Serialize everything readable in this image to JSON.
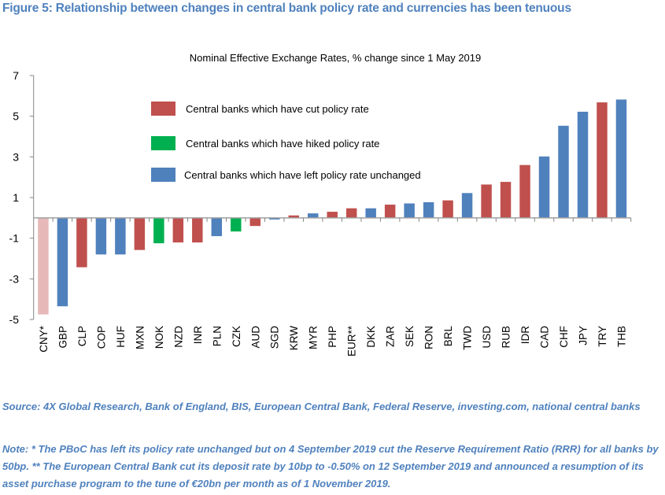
{
  "figure_title": "Figure 5: Relationship between changes in central bank policy rate and currencies has been tenuous",
  "source": "Source: 4X Global Research, Bank of England, BIS, European Central Bank, Federal Reserve, investing.com, national central banks",
  "note": "Note: * The PBoC has left its policy rate unchanged but on 4 September 2019 cut the Reserve Requirement Ratio (RRR) for all banks by 50bp. ** The European Central Bank cut its deposit rate by 10bp to -0.50% on 12 September 2019 and announced a resumption of its asset purchase program to the tune of €20bn per month as of 1 November 2019.",
  "colors": {
    "cut": "#c0504d",
    "hiked": "#00b050",
    "unchanged": "#4f81bd",
    "cny_special": "#e6b9b8",
    "title": "#4f81bd"
  },
  "chart_data": {
    "type": "bar",
    "title": "Nominal Effective Exchange Rates, % change since 1 May 2019",
    "xlabel": "",
    "ylabel": "",
    "ylim": [
      -5,
      7
    ],
    "yticks": [
      -5,
      -3,
      -1,
      1,
      3,
      5,
      7
    ],
    "grid": false,
    "legend_position": "top-left (inside plot)",
    "legend": [
      {
        "key": "cut",
        "label": "Central banks which have cut policy rate"
      },
      {
        "key": "hiked",
        "label": "Central banks which have hiked policy rate"
      },
      {
        "key": "unchanged",
        "label": "Central banks which have left policy rate unchanged"
      }
    ],
    "categories": [
      "CNY*",
      "GBP",
      "CLP",
      "COP",
      "HUF",
      "MXN",
      "NOK",
      "NZD",
      "INR",
      "PLN",
      "CZK",
      "AUD",
      "SGD",
      "KRW",
      "MYR",
      "PHP",
      "EUR**",
      "DKK",
      "ZAR",
      "SEK",
      "RON",
      "BRL",
      "TWD",
      "USD",
      "RUB",
      "IDR",
      "CAD",
      "CHF",
      "JPY",
      "TRY",
      "THB"
    ],
    "values": [
      -4.75,
      -4.35,
      -2.43,
      -1.8,
      -1.8,
      -1.58,
      -1.25,
      -1.21,
      -1.21,
      -0.9,
      -0.67,
      -0.4,
      -0.08,
      0.12,
      0.22,
      0.3,
      0.47,
      0.47,
      0.65,
      0.71,
      0.77,
      0.86,
      1.22,
      1.64,
      1.77,
      2.6,
      3.02,
      4.53,
      5.22,
      5.68,
      5.82
    ],
    "groups": [
      "cny_special",
      "unchanged",
      "cut",
      "unchanged",
      "unchanged",
      "cut",
      "hiked",
      "cut",
      "cut",
      "unchanged",
      "hiked",
      "cut",
      "unchanged",
      "cut",
      "unchanged",
      "cut",
      "cut",
      "unchanged",
      "cut",
      "unchanged",
      "unchanged",
      "cut",
      "unchanged",
      "cut",
      "cut",
      "cut",
      "unchanged",
      "unchanged",
      "unchanged",
      "cut",
      "unchanged"
    ]
  }
}
